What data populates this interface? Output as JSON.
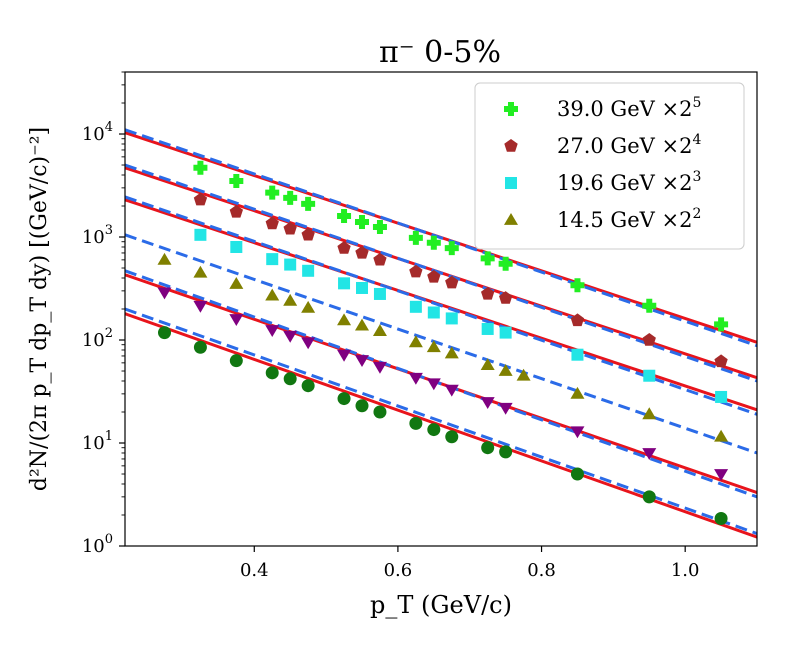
{
  "chart_data": {
    "type": "scatter",
    "title": "π⁻ 0-5%",
    "xlabel": "p_T (GeV/c)",
    "ylabel": "d²N/(2π p_T dp_T dy) [(GeV/c)⁻²]",
    "xlim": [
      0.22,
      1.1
    ],
    "ylim": [
      1,
      40000
    ],
    "yscale": "log",
    "grid": false,
    "legend_position": "top-right",
    "x_ticks": [
      0.4,
      0.6,
      0.8,
      1.0
    ],
    "x_tick_labels": [
      "0.4",
      "0.6",
      "0.8",
      "1.0"
    ],
    "y_ticks": [
      1,
      10,
      100,
      1000,
      10000
    ],
    "y_tick_labels": [
      "10^0",
      "10^1",
      "10^2",
      "10^3",
      "10^4"
    ],
    "series": [
      {
        "name": "39.0 GeV ×2^5",
        "marker": "plus",
        "color": "#22ee22",
        "x": [
          0.325,
          0.375,
          0.425,
          0.45,
          0.475,
          0.525,
          0.55,
          0.575,
          0.625,
          0.65,
          0.675,
          0.725,
          0.75,
          0.85,
          0.95,
          1.05
        ],
        "y": [
          4700,
          3500,
          2700,
          2400,
          2100,
          1600,
          1400,
          1250,
          980,
          880,
          780,
          620,
          550,
          340,
          215,
          142
        ],
        "fit_red": [
          [
            0.22,
            10300
          ],
          [
            1.1,
            95
          ]
        ],
        "fit_blue": [
          [
            0.22,
            11000
          ],
          [
            1.1,
            88
          ]
        ]
      },
      {
        "name": "27.0 GeV ×2^4",
        "marker": "pentagon",
        "color": "#a52a2a",
        "x": [
          0.325,
          0.375,
          0.425,
          0.45,
          0.475,
          0.525,
          0.55,
          0.575,
          0.625,
          0.65,
          0.675,
          0.725,
          0.75,
          0.85,
          0.95,
          1.05
        ],
        "y": [
          2300,
          1750,
          1350,
          1200,
          1050,
          780,
          700,
          600,
          460,
          410,
          360,
          280,
          255,
          155,
          100,
          62
        ],
        "fit_red": [
          [
            0.22,
            4700
          ],
          [
            1.1,
            43
          ]
        ],
        "fit_blue": [
          [
            0.22,
            5000
          ],
          [
            1.1,
            40
          ]
        ]
      },
      {
        "name": "19.6 GeV ×2^3",
        "marker": "square",
        "color": "#22e5e5",
        "x": [
          0.325,
          0.375,
          0.425,
          0.45,
          0.475,
          0.525,
          0.55,
          0.575,
          0.625,
          0.65,
          0.675,
          0.725,
          0.75,
          0.85,
          0.95,
          1.05
        ],
        "y": [
          1050,
          800,
          610,
          540,
          470,
          355,
          320,
          280,
          210,
          185,
          162,
          128,
          118,
          72,
          45,
          28
        ],
        "fit_red": [
          [
            0.22,
            2300
          ],
          [
            1.1,
            21
          ]
        ],
        "fit_blue": [
          [
            0.22,
            2450
          ],
          [
            1.1,
            19
          ]
        ]
      },
      {
        "name": "14.5 GeV ×2^2",
        "marker": "triangle-up",
        "color": "#808000",
        "x": [
          0.275,
          0.325,
          0.375,
          0.425,
          0.45,
          0.475,
          0.525,
          0.55,
          0.575,
          0.625,
          0.65,
          0.675,
          0.725,
          0.75,
          0.775,
          0.85,
          0.95,
          1.05
        ],
        "y": [
          600,
          450,
          350,
          270,
          240,
          205,
          155,
          138,
          122,
          95,
          85,
          74,
          57,
          50,
          45,
          30,
          19,
          11.5
        ],
        "fit_red": [],
        "fit_blue": [
          [
            0.22,
            1050
          ],
          [
            1.1,
            8
          ]
        ]
      },
      {
        "name": "",
        "marker": "triangle-down",
        "color": "#800080",
        "x": [
          0.275,
          0.325,
          0.375,
          0.425,
          0.45,
          0.475,
          0.525,
          0.55,
          0.575,
          0.625,
          0.65,
          0.675,
          0.725,
          0.75,
          0.85,
          0.95,
          1.05
        ],
        "y": [
          290,
          215,
          160,
          125,
          110,
          95,
          72,
          64,
          55,
          43,
          38,
          33,
          25,
          22,
          13,
          8,
          5
        ],
        "fit_red": [
          [
            0.22,
            430
          ],
          [
            1.1,
            3.3
          ]
        ],
        "fit_blue": [
          [
            0.22,
            470
          ],
          [
            1.1,
            3.0
          ]
        ]
      },
      {
        "name": "",
        "marker": "circle",
        "color": "#117711",
        "x": [
          0.275,
          0.325,
          0.375,
          0.425,
          0.45,
          0.475,
          0.525,
          0.55,
          0.575,
          0.625,
          0.65,
          0.675,
          0.725,
          0.75,
          0.85,
          0.95,
          1.05
        ],
        "y": [
          118,
          85,
          63,
          48,
          42,
          36,
          27,
          23,
          20,
          15.5,
          13.5,
          11.5,
          9,
          8.2,
          5,
          3,
          1.85
        ],
        "fit_red": [
          [
            0.22,
            180
          ],
          [
            1.1,
            1.22
          ]
        ],
        "fit_blue": [
          [
            0.22,
            200
          ],
          [
            1.1,
            1.32
          ]
        ]
      }
    ]
  }
}
